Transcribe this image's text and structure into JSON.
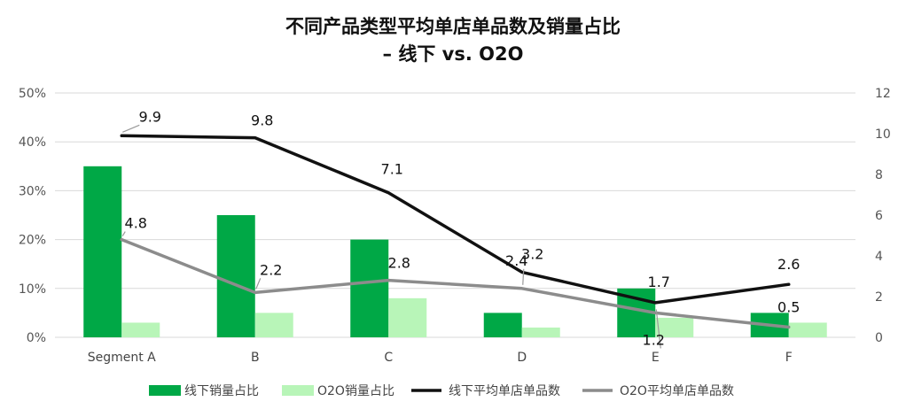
{
  "chart_data": {
    "type": "bar",
    "title_line1": "不同产品类型平均单店单品数及销量占比",
    "title_line2": "– 线下 vs. O2O",
    "categories": [
      "Segment A",
      "B",
      "C",
      "D",
      "E",
      "F"
    ],
    "y_left": {
      "min": 0,
      "max": 50,
      "step": 10,
      "suffix": "%"
    },
    "y_right": {
      "min": 0,
      "max": 12,
      "step": 2
    },
    "bar_series": [
      {
        "name": "线下销量占比",
        "color": "#00a846",
        "axis": "left",
        "values": [
          35,
          25,
          20,
          5,
          10,
          5
        ]
      },
      {
        "name": "O2O销量占比",
        "color": "#b8f5b8",
        "axis": "left",
        "values": [
          3,
          5,
          8,
          2,
          4,
          3
        ]
      }
    ],
    "line_series": [
      {
        "name": "线下平均单店单品数",
        "color": "#111111",
        "axis": "right",
        "values": [
          9.9,
          9.8,
          7.1,
          3.2,
          1.7,
          2.6
        ],
        "labels": [
          "9.9",
          "9.8",
          "7.1",
          "3.2",
          "1.7",
          "2.6"
        ]
      },
      {
        "name": "O2O平均单店单品数",
        "color": "#8c8c8c",
        "axis": "right",
        "values": [
          4.8,
          2.2,
          2.8,
          2.4,
          1.2,
          0.5
        ],
        "labels": [
          "4.8",
          "2.2",
          "2.8",
          "2.4",
          "1.2",
          "0.5"
        ]
      }
    ],
    "grid": true,
    "legend_position": "bottom"
  }
}
